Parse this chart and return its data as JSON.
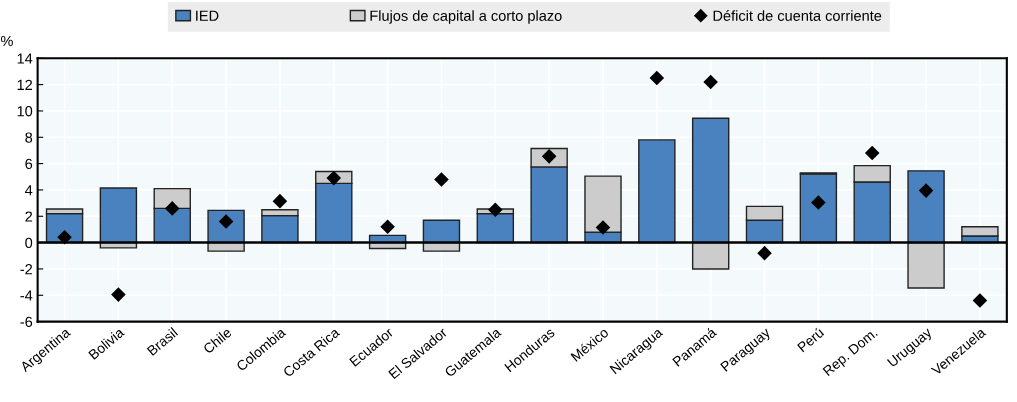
{
  "chart_data": {
    "type": "bar",
    "stacked": true,
    "ylabel": "%",
    "categories": [
      "Argentina",
      "Bolivia",
      "Brasil",
      "Chile",
      "Colombia",
      "Costa Rica",
      "Ecuador",
      "El Salvador",
      "Guatemala",
      "Honduras",
      "México",
      "Nicaragua",
      "Panamá",
      "Paraguay",
      "Perú",
      "Rep. Dom.",
      "Uruguay",
      "Venezuela"
    ],
    "series": [
      {
        "name": "IED",
        "color": "#4a81bf",
        "values": [
          2.2,
          4.15,
          2.6,
          2.45,
          2.05,
          4.5,
          0.55,
          1.7,
          2.2,
          5.75,
          0.8,
          7.8,
          9.45,
          1.7,
          5.2,
          4.6,
          5.45,
          0.5
        ]
      },
      {
        "name": "Flujos de capital a corto plazo",
        "color": "#cccccc",
        "values": [
          0.35,
          -0.4,
          1.5,
          -0.65,
          0.45,
          0.9,
          -0.45,
          -0.65,
          0.35,
          1.4,
          4.25,
          null,
          -2,
          1.05,
          0.1,
          1.25,
          -3.45,
          0.7
        ]
      },
      {
        "name": "Déficit de cuenta corriente",
        "type": "scatter",
        "color": "#000000",
        "marker": "diamond",
        "values": [
          0.4,
          -3.95,
          2.6,
          1.6,
          3.15,
          4.9,
          1.2,
          4.8,
          2.5,
          6.55,
          1.15,
          12.5,
          12.2,
          -0.8,
          3.05,
          6.8,
          3.95,
          -4.4
        ]
      }
    ],
    "ylim": [
      -6,
      14
    ],
    "yticks": [
      -6,
      -4,
      -2,
      0,
      2,
      4,
      6,
      8,
      10,
      12,
      14
    ],
    "grid": true,
    "legend": "top"
  }
}
